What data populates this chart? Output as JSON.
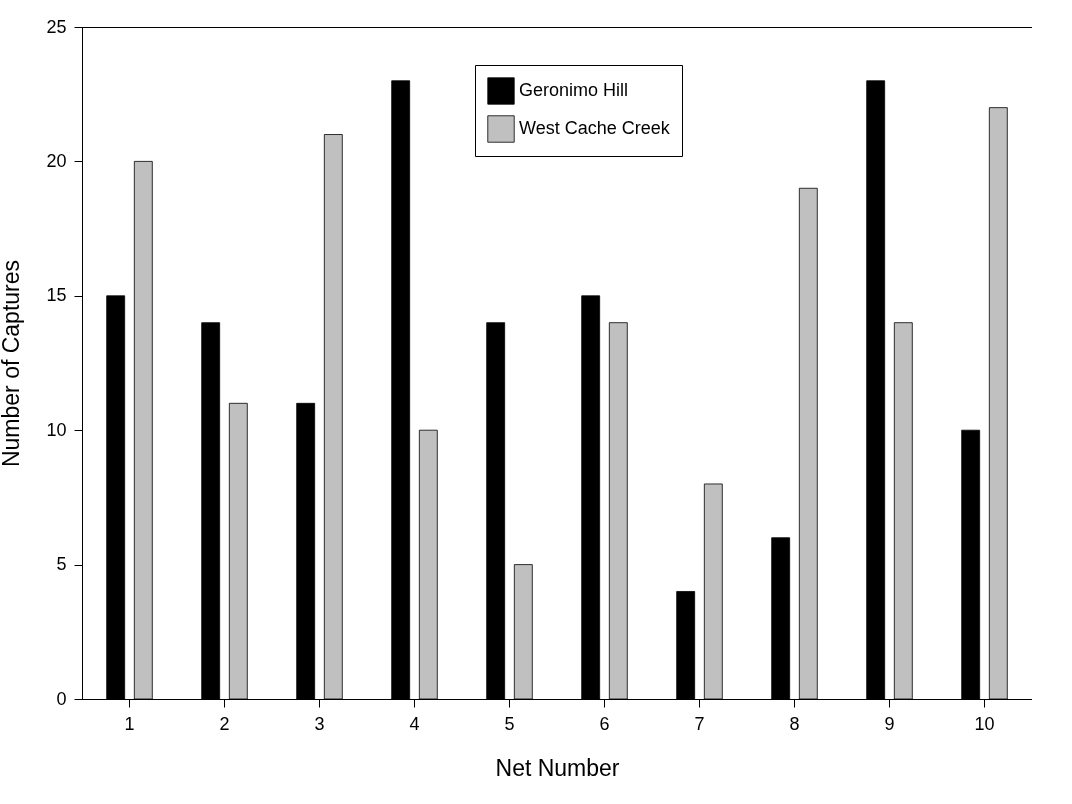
{
  "chart_data": {
    "type": "bar",
    "xlabel": "Net Number",
    "ylabel": "Number of Captures",
    "categories": [
      "1",
      "2",
      "3",
      "4",
      "5",
      "6",
      "7",
      "8",
      "9",
      "10"
    ],
    "series": [
      {
        "name": "Geronimo Hill",
        "color": "#000000",
        "values": [
          15,
          14,
          11,
          23,
          14,
          15,
          4,
          6,
          23,
          10
        ]
      },
      {
        "name": "West Cache Creek",
        "color": "#c0c0c0",
        "values": [
          20,
          11,
          21,
          10,
          5,
          14,
          8,
          19,
          14,
          22
        ]
      }
    ],
    "ylim": [
      0,
      25
    ],
    "yticks": [
      0,
      5,
      10,
      15,
      20,
      25
    ],
    "grid": false,
    "legend": "top right"
  }
}
